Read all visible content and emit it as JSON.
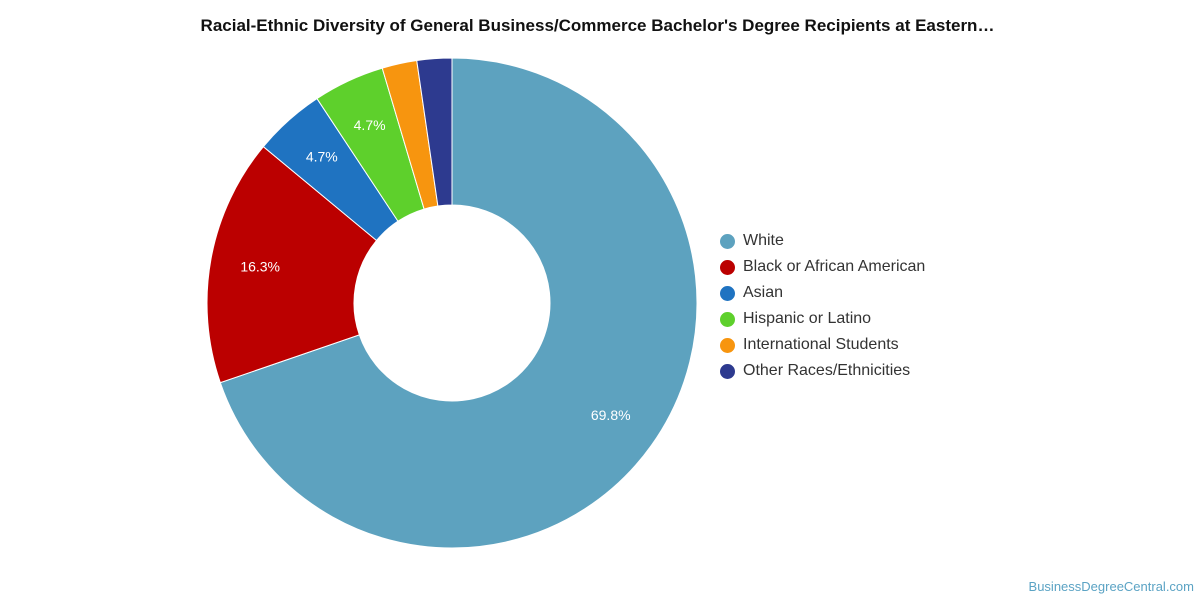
{
  "chart_data": {
    "type": "pie",
    "variant": "donut",
    "title": "Racial-Ethnic Diversity of General Business/Commerce Bachelor's Degree Recipients at Eastern…",
    "legend_position": "right",
    "slices": [
      {
        "label": "White",
        "value": 69.8,
        "color": "#5da2bf",
        "data_label": "69.8%"
      },
      {
        "label": "Black or African American",
        "value": 16.3,
        "color": "#bb0000",
        "data_label": "16.3%"
      },
      {
        "label": "Asian",
        "value": 4.7,
        "color": "#1f73c1",
        "data_label": "4.7%"
      },
      {
        "label": "Hispanic or Latino",
        "value": 4.7,
        "color": "#5ed02c",
        "data_label": "4.7%"
      },
      {
        "label": "International Students",
        "value": 2.3,
        "color": "#f7950f",
        "data_label": ""
      },
      {
        "label": "Other Races/Ethnicities",
        "value": 2.3,
        "color": "#2d3a8f",
        "data_label": ""
      }
    ]
  },
  "footer": {
    "credit": "BusinessDegreeCentral.com"
  }
}
